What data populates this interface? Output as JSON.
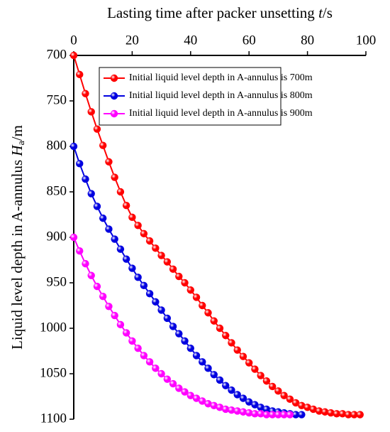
{
  "chart_data": {
    "type": "line",
    "x_label": {
      "text": "Lasting time after packer unsetting",
      "var": "t",
      "unit": "/s"
    },
    "y_label": {
      "text": "Liquid level depth in A-annulus",
      "var": "H",
      "sub": "a",
      "unit": "/m"
    },
    "xlim": [
      0,
      100
    ],
    "xticks": [
      0,
      20,
      40,
      60,
      80,
      100
    ],
    "ylim": [
      700,
      1100
    ],
    "yticks": [
      700,
      750,
      800,
      850,
      900,
      950,
      1000,
      1050,
      1100
    ],
    "y_inverted": true,
    "x_axis_top": true,
    "legend": "upper right",
    "series": [
      {
        "name": "Initial liquid level depth in A-annulus is 700m",
        "color": "#ff0000",
        "x": [
          0,
          2,
          4,
          6,
          8,
          10,
          12,
          14,
          16,
          18,
          20,
          22,
          24,
          26,
          28,
          30,
          32,
          34,
          36,
          38,
          40,
          42,
          44,
          46,
          48,
          50,
          52,
          54,
          56,
          58,
          60,
          62,
          64,
          66,
          68,
          70,
          72,
          74,
          76,
          78,
          80,
          82,
          84,
          86,
          88,
          90,
          92,
          94,
          96,
          98
        ],
        "values": [
          700,
          721,
          742,
          762,
          781,
          799,
          817,
          834,
          850,
          865,
          878,
          887,
          896,
          904,
          912,
          920,
          927,
          935,
          943,
          950,
          958,
          966,
          975,
          983,
          992,
          1000,
          1008,
          1016,
          1024,
          1031,
          1038,
          1045,
          1052,
          1058,
          1064,
          1069,
          1074,
          1078,
          1082,
          1085,
          1087,
          1089,
          1091,
          1092,
          1093,
          1094,
          1094,
          1095,
          1095,
          1095
        ]
      },
      {
        "name": "Initial liquid level depth in A-annulus is 800m",
        "color": "#0000e0",
        "x": [
          0,
          2,
          4,
          6,
          8,
          10,
          12,
          14,
          16,
          18,
          20,
          22,
          24,
          26,
          28,
          30,
          32,
          34,
          36,
          38,
          40,
          42,
          44,
          46,
          48,
          50,
          52,
          54,
          56,
          58,
          60,
          62,
          64,
          66,
          68,
          70,
          72,
          74,
          76,
          78
        ],
        "values": [
          800,
          819,
          836,
          852,
          866,
          879,
          891,
          902,
          913,
          924,
          934,
          944,
          953,
          962,
          971,
          980,
          989,
          998,
          1006,
          1014,
          1022,
          1030,
          1037,
          1044,
          1051,
          1057,
          1063,
          1068,
          1073,
          1077,
          1081,
          1084,
          1087,
          1089,
          1091,
          1092,
          1093,
          1094,
          1095,
          1095
        ]
      },
      {
        "name": "Initial liquid level depth in A-annulus is 900m",
        "color": "#ff00ff",
        "x": [
          0,
          2,
          4,
          6,
          8,
          10,
          12,
          14,
          16,
          18,
          20,
          22,
          24,
          26,
          28,
          30,
          32,
          34,
          36,
          38,
          40,
          42,
          44,
          46,
          48,
          50,
          52,
          54,
          56,
          58,
          60,
          62,
          64,
          66,
          68,
          70,
          72,
          74
        ],
        "values": [
          900,
          915,
          929,
          942,
          954,
          965,
          976,
          986,
          996,
          1005,
          1014,
          1022,
          1030,
          1037,
          1044,
          1050,
          1056,
          1061,
          1066,
          1070,
          1074,
          1077,
          1080,
          1083,
          1085,
          1087,
          1089,
          1090,
          1091,
          1092,
          1093,
          1094,
          1094,
          1095,
          1095,
          1095,
          1095,
          1095
        ]
      }
    ]
  }
}
